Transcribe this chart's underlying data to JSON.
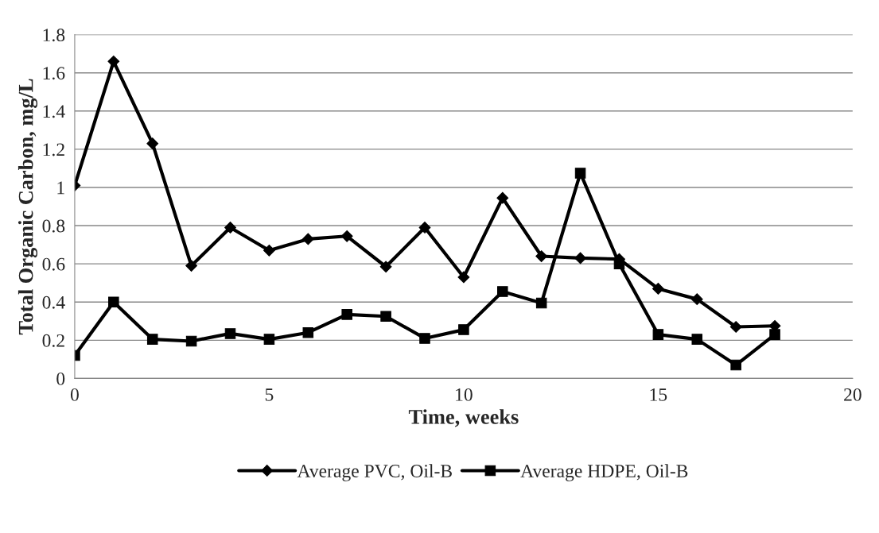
{
  "chart_data": {
    "type": "line",
    "xlabel": "Time, weeks",
    "ylabel": "Total Organic Carbon, mg/L",
    "x": [
      0,
      1,
      2,
      3,
      4,
      5,
      6,
      7,
      8,
      9,
      10,
      11,
      12,
      13,
      14,
      15,
      16,
      17,
      18
    ],
    "series": [
      {
        "name": "Average PVC, Oil-B",
        "color": "#000000",
        "marker": "diamond",
        "values": [
          1.01,
          1.66,
          1.23,
          0.59,
          0.79,
          0.67,
          0.73,
          0.745,
          0.585,
          0.79,
          0.53,
          0.945,
          0.64,
          0.63,
          0.625,
          0.47,
          0.415,
          0.27,
          0.275
        ]
      },
      {
        "name": "Average HDPE, Oil-B",
        "color": "#000000",
        "marker": "square",
        "values": [
          0.12,
          0.4,
          0.205,
          0.195,
          0.235,
          0.205,
          0.24,
          0.335,
          0.325,
          0.21,
          0.255,
          0.455,
          0.395,
          1.075,
          0.6,
          0.23,
          0.205,
          0.07,
          0.23
        ]
      }
    ],
    "xlim": [
      0,
      20
    ],
    "xticks": [
      0,
      5,
      10,
      15,
      20
    ],
    "ylim": [
      0,
      1.8
    ],
    "yticks": [
      0,
      0.2,
      0.4,
      0.6,
      0.8,
      1,
      1.2,
      1.4,
      1.6,
      1.8
    ],
    "grid": "y",
    "legend": "bottom",
    "line_style": "solid"
  }
}
